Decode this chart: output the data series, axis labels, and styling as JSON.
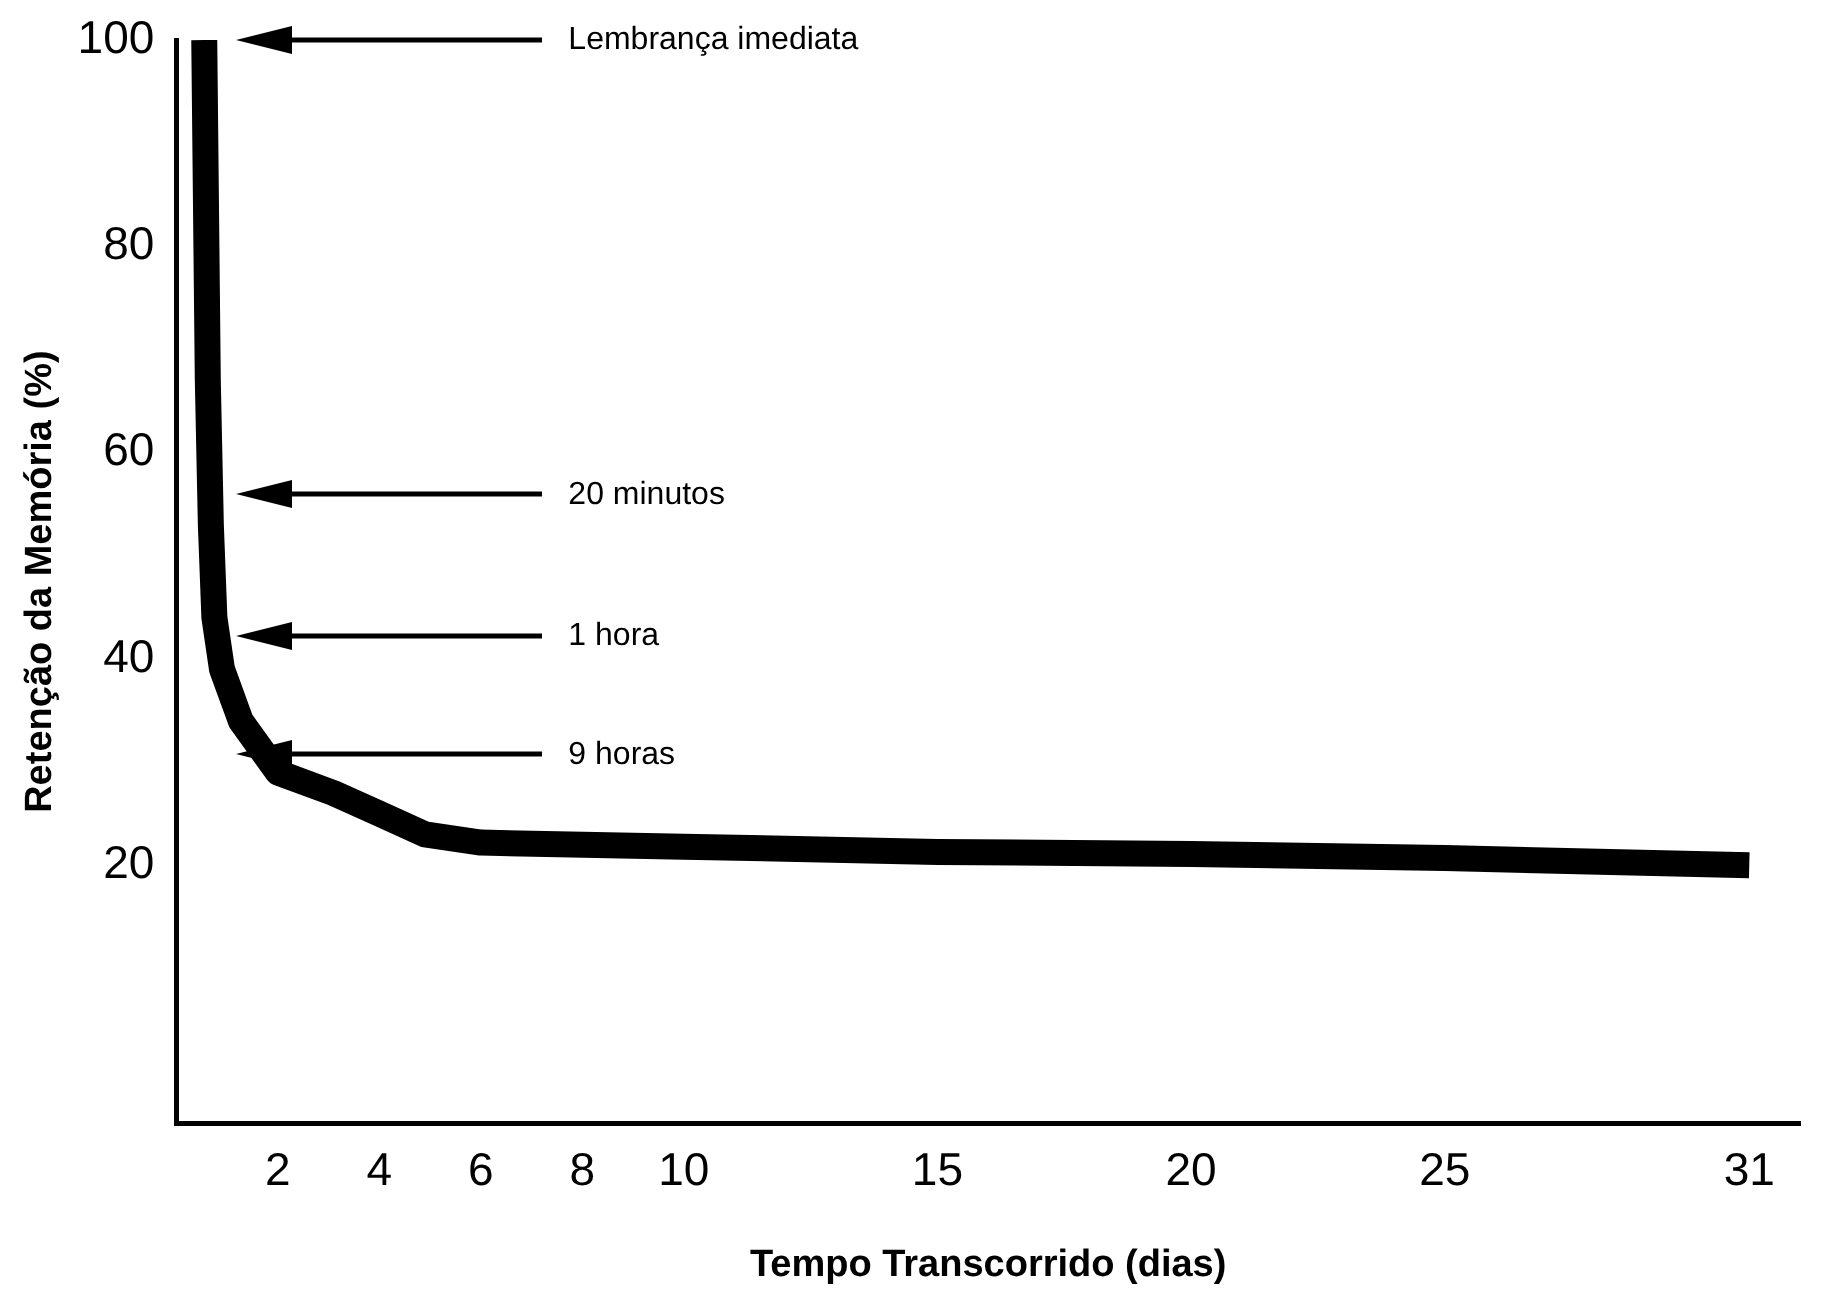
{
  "chart_data": {
    "type": "line",
    "xlabel": "Tempo Transcorrido (dias)",
    "ylabel": "Retenção da Memória (%)",
    "x": [
      0.55,
      0.62,
      0.68,
      0.75,
      0.9,
      1.27,
      2,
      3.1,
      4,
      4.9,
      6,
      10,
      15,
      20,
      25,
      31
    ],
    "series": [
      {
        "color": "#000000",
        "values": [
          100,
          67,
          53,
          44,
          39,
          34,
          29,
          27,
          25,
          23,
          22.2,
          21.8,
          21.3,
          21.1,
          20.7,
          20
        ]
      }
    ],
    "xlim": [
      0,
      32
    ],
    "xticks": [
      2,
      4,
      6,
      8,
      10,
      15,
      20,
      25,
      31
    ],
    "ylim": [
      -5,
      100
    ],
    "yticks": [
      20,
      40,
      60,
      80,
      100
    ],
    "grid": false,
    "legend": false,
    "marker": "none",
    "line_style": "solid",
    "annotations": [
      "Lembrança imediata",
      "20 minutos",
      "1 hora",
      "9 horas"
    ]
  }
}
